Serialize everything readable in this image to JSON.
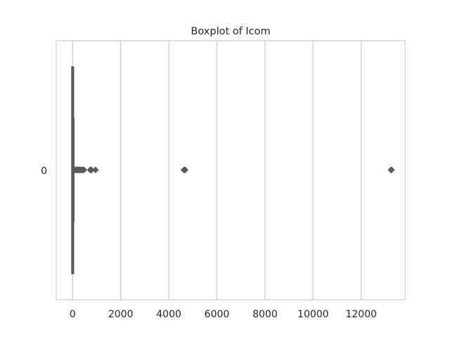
{
  "chart_data": {
    "type": "boxplot",
    "orientation": "horizontal",
    "title": "Boxplot of Icom",
    "xlabel": "",
    "ylabel": "",
    "categories": [
      "0"
    ],
    "xlim": [
      -680,
      13820
    ],
    "xticks": [
      0,
      2000,
      4000,
      6000,
      8000,
      10000,
      12000
    ],
    "xtick_labels": [
      "0",
      "2000",
      "4000",
      "6000",
      "8000",
      "10000",
      "12000"
    ],
    "grid": true,
    "box": {
      "whisker_low": 0,
      "q1": 0,
      "median": 0,
      "q3": 5,
      "whisker_high": 50
    },
    "outliers": [
      80,
      110,
      140,
      170,
      200,
      230,
      260,
      290,
      320,
      350,
      380,
      420,
      450,
      470,
      730,
      760,
      780,
      950,
      4630,
      4650,
      4680,
      13240,
      13260
    ],
    "colors": {
      "box": "#5a5a5a",
      "grid": "#cccccc",
      "frame": "#cccccc"
    }
  }
}
